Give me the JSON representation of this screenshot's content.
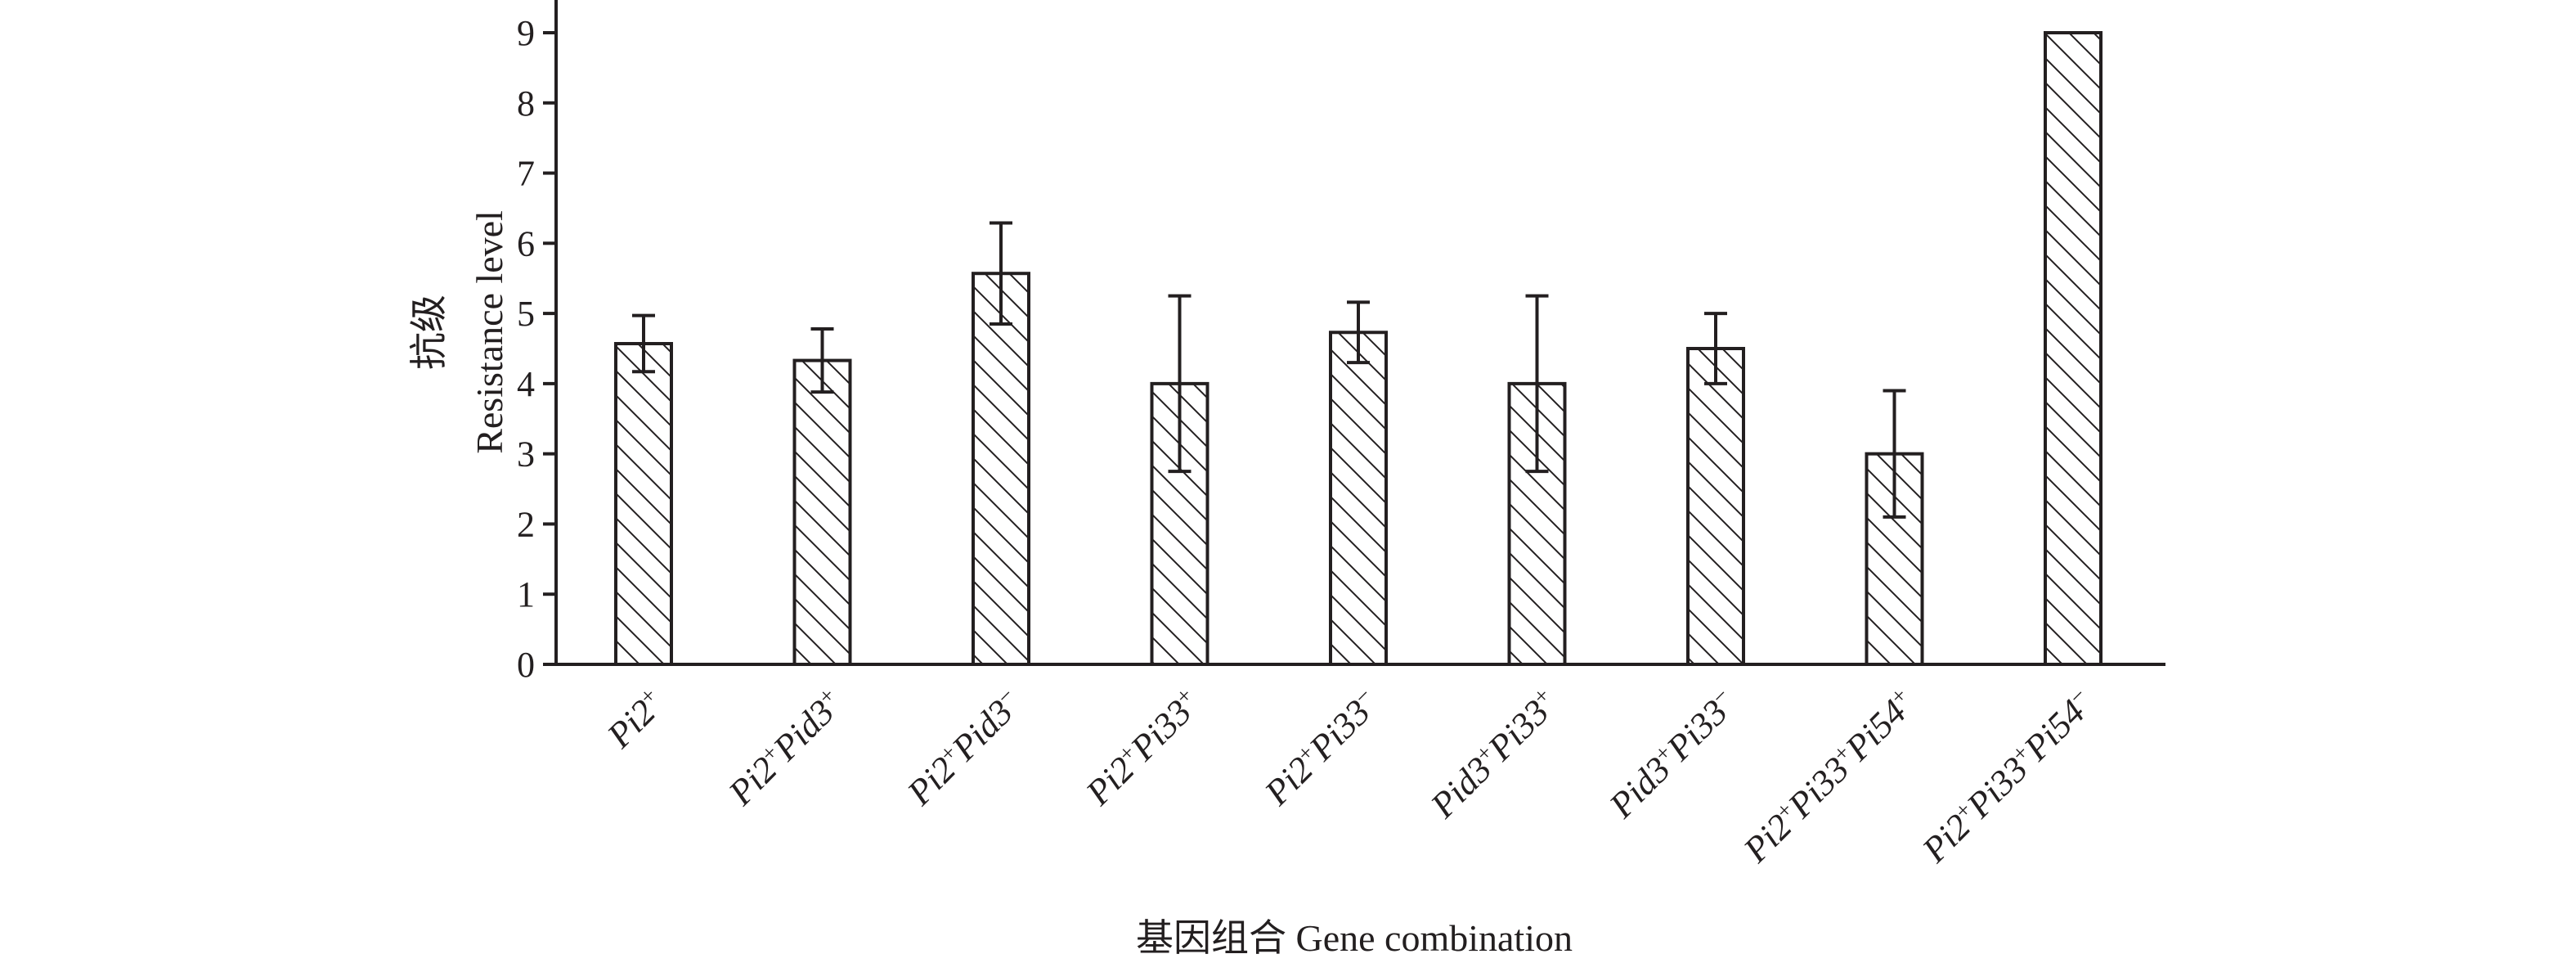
{
  "chart_data": {
    "type": "bar",
    "categories": [
      "Pi2+",
      "Pi2+Pid3+",
      "Pi2+Pid3−",
      "Pi2+Pi33+",
      "Pi2+Pi33−",
      "Pid3+Pi33+",
      "Pid3+Pi33−",
      "Pi2+Pi33+Pi54+",
      "Pi2+Pi33+Pi54−"
    ],
    "category_parts": [
      [
        [
          "Pi2",
          "+"
        ]
      ],
      [
        [
          "Pi2",
          "+"
        ],
        [
          "Pid3",
          "+"
        ]
      ],
      [
        [
          "Pi2",
          "+"
        ],
        [
          "Pid3",
          "−"
        ]
      ],
      [
        [
          "Pi2",
          "+"
        ],
        [
          "Pi33",
          "+"
        ]
      ],
      [
        [
          "Pi2",
          "+"
        ],
        [
          "Pi33",
          "−"
        ]
      ],
      [
        [
          "Pid3",
          "+"
        ],
        [
          "Pi33",
          "+"
        ]
      ],
      [
        [
          "Pid3",
          "+"
        ],
        [
          "Pi33",
          "−"
        ]
      ],
      [
        [
          "Pi2",
          "+"
        ],
        [
          "Pi33",
          "+"
        ],
        [
          "Pi54",
          "+"
        ]
      ],
      [
        [
          "Pi2",
          "+"
        ],
        [
          "Pi33",
          "+"
        ],
        [
          "Pi54",
          "−"
        ]
      ]
    ],
    "values": [
      4.57,
      4.33,
      5.57,
      4.0,
      4.73,
      4.0,
      4.5,
      3.0,
      9.0
    ],
    "error_bars": [
      0.4,
      0.45,
      0.72,
      1.25,
      0.43,
      1.25,
      0.5,
      0.9,
      0
    ],
    "yticks": [
      "0",
      "1",
      "2",
      "3",
      "4",
      "5",
      "6",
      "7",
      "8",
      "9"
    ],
    "ylim": [
      0,
      9
    ],
    "ylabel_cn": "抗级",
    "ylabel": "Resistance level",
    "xlabel": "基因组合 Gene combination",
    "bar_fill": "hatched",
    "grid": false,
    "colors": {
      "ink": "#231f20",
      "bar_background": "#ffffff"
    }
  }
}
